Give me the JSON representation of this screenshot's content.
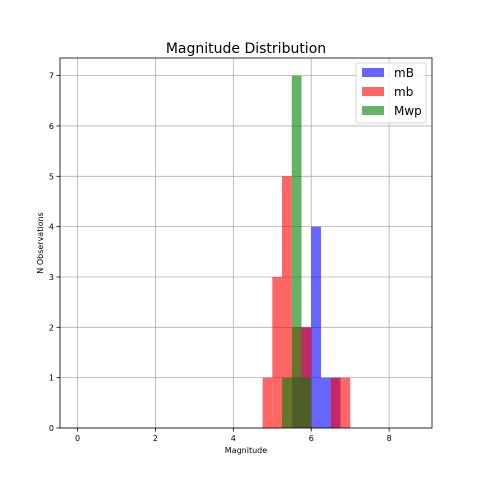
{
  "chart_data": {
    "type": "bar",
    "title": "Magnitude Distribution",
    "xlabel": "Magnitude",
    "ylabel": "N Observations",
    "xlim": [
      -0.45,
      9.1
    ],
    "ylim": [
      0,
      7.35
    ],
    "xticks": [
      0,
      2,
      4,
      6,
      8
    ],
    "yticks": [
      0,
      1,
      2,
      3,
      4,
      5,
      6,
      7
    ],
    "grid": true,
    "legend": "top-right",
    "series": [
      {
        "name": "mB",
        "color": "#0000ff",
        "alpha": 0.6,
        "bins": [
          {
            "x0": 5.5,
            "x1": 5.75,
            "count": 1
          },
          {
            "x0": 5.75,
            "x1": 6.0,
            "count": 2
          },
          {
            "x0": 6.0,
            "x1": 6.25,
            "count": 4
          },
          {
            "x0": 6.25,
            "x1": 6.5,
            "count": 1
          },
          {
            "x0": 6.5,
            "x1": 6.75,
            "count": 1
          }
        ]
      },
      {
        "name": "mb",
        "color": "#ff0000",
        "alpha": 0.6,
        "bins": [
          {
            "x0": 4.75,
            "x1": 5.0,
            "count": 1
          },
          {
            "x0": 5.0,
            "x1": 5.25,
            "count": 3
          },
          {
            "x0": 5.25,
            "x1": 5.5,
            "count": 5
          },
          {
            "x0": 5.5,
            "x1": 5.75,
            "count": 2
          },
          {
            "x0": 5.75,
            "x1": 6.0,
            "count": 2
          },
          {
            "x0": 6.0,
            "x1": 6.25,
            "count": 0
          },
          {
            "x0": 6.25,
            "x1": 6.5,
            "count": 0
          },
          {
            "x0": 6.5,
            "x1": 6.75,
            "count": 1
          },
          {
            "x0": 6.75,
            "x1": 7.0,
            "count": 1
          }
        ]
      },
      {
        "name": "Mwp",
        "color": "#008000",
        "alpha": 0.6,
        "bins": [
          {
            "x0": 5.25,
            "x1": 5.5,
            "count": 1
          },
          {
            "x0": 5.5,
            "x1": 5.75,
            "count": 7
          },
          {
            "x0": 5.75,
            "x1": 6.0,
            "count": 1
          }
        ]
      }
    ]
  }
}
